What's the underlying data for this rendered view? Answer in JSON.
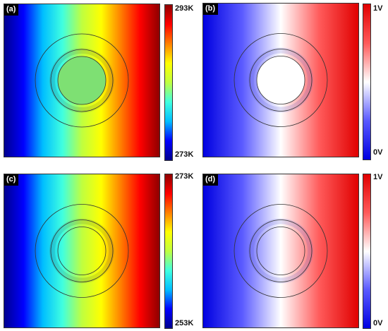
{
  "panels": [
    {
      "tag": "(a)",
      "cbar_max": "293K",
      "cbar_min": "273K",
      "colormap": "jet",
      "center_color": "#7ee073",
      "ring_inner_style": "uniform"
    },
    {
      "tag": "(b)",
      "cbar_max": "1V",
      "cbar_min": "0V",
      "colormap": "blue-white-red",
      "center_color": "#ffffff",
      "ring_inner_style": "uniform"
    },
    {
      "tag": "(c)",
      "cbar_max": "273K",
      "cbar_min": "253K",
      "colormap": "jet",
      "center_color": "",
      "ring_inner_style": "gradient"
    },
    {
      "tag": "(d)",
      "cbar_max": "1V",
      "cbar_min": "0V",
      "colormap": "blue-white-red",
      "center_color": "",
      "ring_inner_style": "gradient"
    }
  ],
  "colors": {
    "jet": [
      "#00008f",
      "#0000ff",
      "#00bfff",
      "#40ffe0",
      "#bfff40",
      "#ffff00",
      "#ff8000",
      "#ff0000",
      "#8f0000"
    ],
    "bwr": [
      "#0000e0",
      "#5a5aff",
      "#ffffff",
      "#ff5a5a",
      "#e00000"
    ],
    "contour": "#333333"
  }
}
